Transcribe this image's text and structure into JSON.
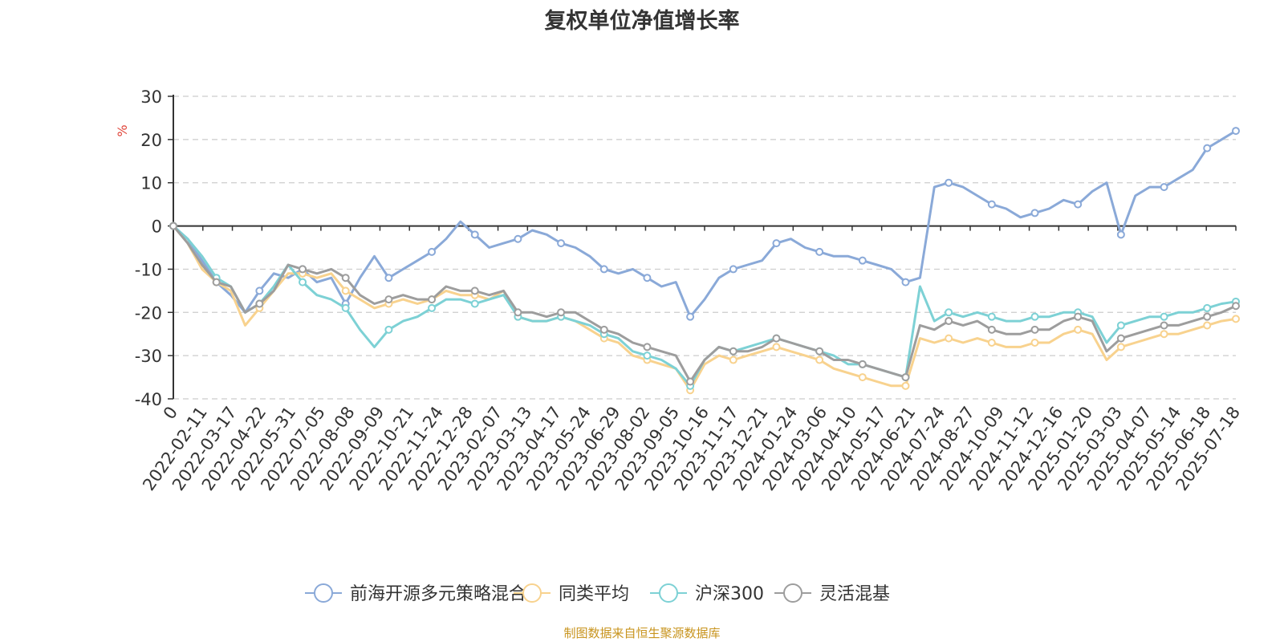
{
  "title": "复权单位净值增长率",
  "footer": "制图数据来自恒生聚源数据库",
  "chart_data": {
    "type": "line",
    "title": "复权单位净值增长率",
    "ylabel": "%",
    "ylim": [
      -40,
      30
    ],
    "yticks": [
      30,
      20,
      10,
      0,
      -10,
      -20,
      -30,
      -40
    ],
    "grid": true,
    "legend_position": "bottom",
    "xticks": [
      "0",
      "2022-02-11",
      "2022-03-17",
      "2022-04-22",
      "2022-05-31",
      "2022-07-05",
      "2022-08-08",
      "2022-09-09",
      "2022-10-21",
      "2022-11-24",
      "2022-12-28",
      "2023-02-07",
      "2023-03-13",
      "2023-04-17",
      "2023-05-24",
      "2023-06-29",
      "2023-08-02",
      "2023-09-05",
      "2023-10-16",
      "2023-11-17",
      "2023-12-21",
      "2024-01-24",
      "2024-03-06",
      "2024-04-10",
      "2024-05-17",
      "2024-06-21",
      "2024-07-24",
      "2024-08-27",
      "2024-10-09",
      "2024-11-12",
      "2024-12-16",
      "2025-01-20",
      "2025-03-03",
      "2025-04-07",
      "2025-05-14",
      "2025-06-18",
      "2025-07-18"
    ],
    "series": [
      {
        "name": "前海开源多元策略混合A",
        "color": "#8aa9d8",
        "values": [
          0,
          -3,
          -8,
          -13,
          -16,
          -20,
          -15,
          -11,
          -12,
          -10,
          -13,
          -12,
          -18,
          -12,
          -7,
          -12,
          -10,
          -8,
          -6,
          -3,
          1,
          -2,
          -5,
          -4,
          -3,
          -1,
          -2,
          -4,
          -5,
          -7,
          -10,
          -11,
          -10,
          -12,
          -14,
          -13,
          -21,
          -17,
          -12,
          -10,
          -9,
          -8,
          -4,
          -3,
          -5,
          -6,
          -7,
          -7,
          -8,
          -9,
          -10,
          -13,
          -12,
          9,
          10,
          9,
          7,
          5,
          4,
          2,
          3,
          4,
          6,
          5,
          8,
          10,
          -2,
          7,
          9,
          9,
          11,
          13,
          18,
          20,
          22
        ]
      },
      {
        "name": "同类平均",
        "color": "#f8d28e",
        "values": [
          0,
          -4,
          -10,
          -13,
          -15,
          -23,
          -19,
          -15,
          -11,
          -11,
          -12,
          -11,
          -15,
          -17,
          -19,
          -18,
          -17,
          -18,
          -17,
          -15,
          -16,
          -16,
          -17,
          -15,
          -21,
          -22,
          -22,
          -21,
          -22,
          -24,
          -26,
          -27,
          -30,
          -31,
          -32,
          -33,
          -38,
          -32,
          -30,
          -31,
          -30,
          -29,
          -28,
          -29,
          -30,
          -31,
          -33,
          -34,
          -35,
          -36,
          -37,
          -37,
          -26,
          -27,
          -26,
          -27,
          -26,
          -27,
          -28,
          -28,
          -27,
          -27,
          -25,
          -24,
          -25,
          -31,
          -28,
          -27,
          -26,
          -25,
          -25,
          -24,
          -23,
          -22,
          -21.5
        ]
      },
      {
        "name": "沪深300",
        "color": "#7dd1d5",
        "values": [
          0,
          -3,
          -7,
          -12,
          -14,
          -20,
          -18,
          -14,
          -9,
          -13,
          -16,
          -17,
          -19,
          -24,
          -28,
          -24,
          -22,
          -21,
          -19,
          -17,
          -17,
          -18,
          -17,
          -16,
          -21,
          -22,
          -22,
          -21,
          -22,
          -23,
          -25,
          -26,
          -29,
          -30,
          -31,
          -33,
          -37,
          -31,
          -28,
          -29,
          -28,
          -27,
          -26,
          -27,
          -28,
          -29,
          -30,
          -32,
          -32,
          -33,
          -34,
          -35,
          -14,
          -22,
          -20,
          -21,
          -20,
          -21,
          -22,
          -22,
          -21,
          -21,
          -20,
          -20,
          -21,
          -27,
          -23,
          -22,
          -21,
          -21,
          -20,
          -20,
          -19,
          -18,
          -17.5
        ]
      },
      {
        "name": "灵活混基",
        "color": "#9d9d9d",
        "values": [
          0,
          -4,
          -9,
          -13,
          -14,
          -20,
          -18,
          -15,
          -9,
          -10,
          -11,
          -10,
          -12,
          -16,
          -18,
          -17,
          -16,
          -17,
          -17,
          -14,
          -15,
          -15,
          -16,
          -15,
          -20,
          -20,
          -21,
          -20,
          -20,
          -22,
          -24,
          -25,
          -27,
          -28,
          -29,
          -30,
          -36,
          -31,
          -28,
          -29,
          -29,
          -28,
          -26,
          -27,
          -28,
          -29,
          -31,
          -31,
          -32,
          -33,
          -34,
          -35,
          -23,
          -24,
          -22,
          -23,
          -22,
          -24,
          -25,
          -25,
          -24,
          -24,
          -22,
          -21,
          -22,
          -29,
          -26,
          -25,
          -24,
          -23,
          -23,
          -22,
          -21,
          -20,
          -18.5
        ]
      }
    ]
  }
}
